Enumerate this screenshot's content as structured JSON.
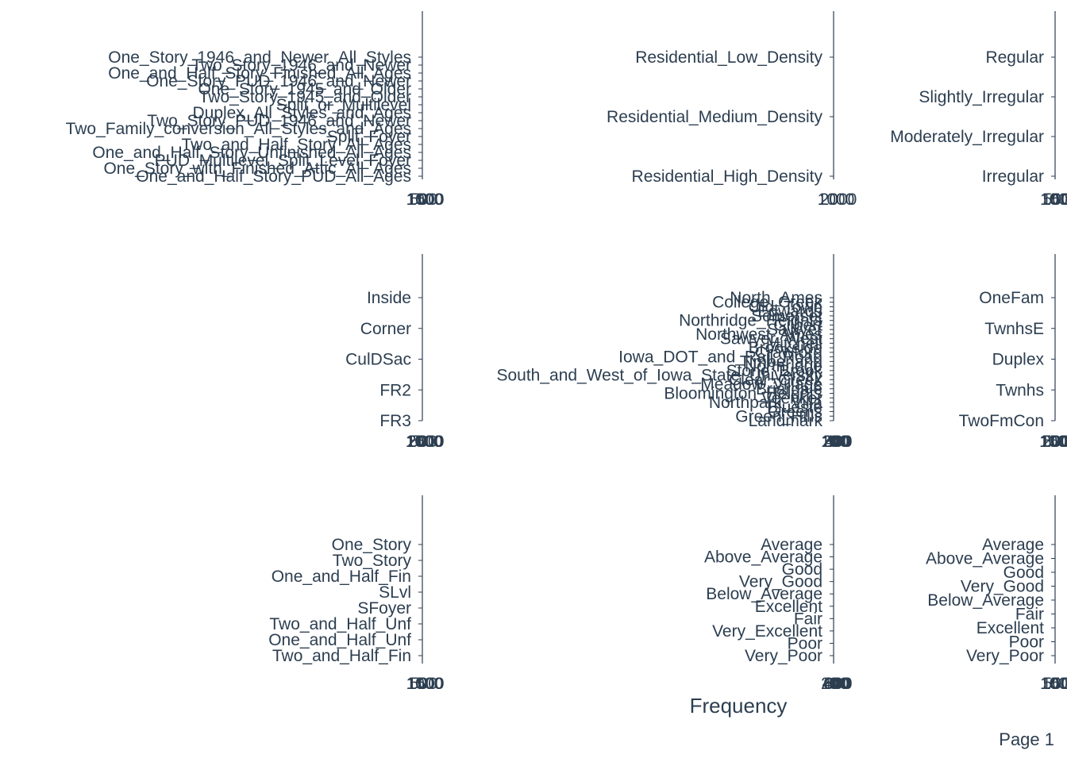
{
  "page_label": "Page 1",
  "x_axis_title": "Frequency",
  "colors": {
    "text": "#2c3e50",
    "axis": "#2c3e50",
    "background": "#ffffff"
  },
  "chart_data": [
    {
      "type": "bar",
      "orientation": "horizontal",
      "categories": [
        "One_Story_1946_and_Newer_All_Styles",
        "Two_Story_1946_and_Newer",
        "One_and_Half_Story_Finished_All_Ages",
        "One_Story_PUD_1946_and_Newer",
        "One_Story_1945_and_Older",
        "Two_Story_1945_and_Older",
        "Split_or_Multilevel",
        "Duplex_All_Styles_and_Ages",
        "Two_Story_PUD_1946_and_Newer",
        "Two_Family_conversion_All_Styles_and_Ages",
        "Split_Foyer",
        "Two_and_Half_Story_All_Ages",
        "One_and_Half_Story_Unfinished_All_Ages",
        "PUD_Multilevel_Split_Level_Foyer",
        "One_Story_with_Finished_Attic_All_Ages",
        "One_and_Half_Story_PUD_All_Ages"
      ],
      "values": [
        0,
        0,
        0,
        0,
        0,
        0,
        0,
        0,
        0,
        0,
        0,
        0,
        0,
        0,
        0,
        0
      ],
      "x_tick_labels": [
        "0",
        "500",
        "1000",
        "1500"
      ]
    },
    {
      "type": "bar",
      "orientation": "horizontal",
      "categories": [
        "Residential_Low_Density",
        "Residential_Medium_Density",
        "Residential_High_Density"
      ],
      "values": [
        0,
        0,
        0
      ],
      "x_tick_labels": [
        "0",
        "1000",
        "2000"
      ]
    },
    {
      "type": "bar",
      "orientation": "horizontal",
      "categories": [
        "Regular",
        "Slightly_Irregular",
        "Moderately_Irregular",
        "Irregular"
      ],
      "values": [
        0,
        0,
        0,
        0
      ],
      "x_tick_labels": [
        "0",
        "500",
        "1000",
        "1500"
      ]
    },
    {
      "type": "bar",
      "orientation": "horizontal",
      "categories": [
        "Inside",
        "Corner",
        "CulDSac",
        "FR2",
        "FR3"
      ],
      "values": [
        0,
        0,
        0,
        0,
        0
      ],
      "x_tick_labels": [
        "0",
        "500",
        "1000",
        "1500",
        "2000"
      ]
    },
    {
      "type": "bar",
      "orientation": "horizontal",
      "categories": [
        "North_Ames",
        "College_Creek",
        "Old_Town",
        "Edwards",
        "Somerset",
        "Northridge_Heights",
        "Gilbert",
        "Sawyer",
        "Northwest_Ames",
        "Sawyer_West",
        "Mitchell",
        "Brookside",
        "Crawford",
        "Iowa_DOT_and_Rail_Road",
        "Timberland",
        "Northridge",
        "Stone_Brook",
        "South_and_West_of_Iowa_State_University",
        "Clear_Creek",
        "Meadow_Village",
        "Briardale",
        "Bloomington_Heights",
        "Veenker",
        "Northpark_Villa",
        "Blueste",
        "Greens",
        "Green_Hills",
        "Landmark"
      ],
      "values": [
        0,
        0,
        0,
        0,
        0,
        0,
        0,
        0,
        0,
        0,
        0,
        0,
        0,
        0,
        0,
        0,
        0,
        0,
        0,
        0,
        0,
        0,
        0,
        0,
        0,
        0,
        0,
        0
      ],
      "x_tick_labels": [
        "0",
        "100",
        "200",
        "300",
        "400"
      ]
    },
    {
      "type": "bar",
      "orientation": "horizontal",
      "categories": [
        "OneFam",
        "TwnhsE",
        "Duplex",
        "Twnhs",
        "TwoFmCon"
      ],
      "values": [
        0,
        0,
        0,
        0,
        0
      ],
      "x_tick_labels": [
        "0",
        "500",
        "1000",
        "1500",
        "2000"
      ]
    },
    {
      "type": "bar",
      "orientation": "horizontal",
      "categories": [
        "One_Story",
        "Two_Story",
        "One_and_Half_Fin",
        "SLvl",
        "SFoyer",
        "Two_and_Half_Unf",
        "One_and_Half_Unf",
        "Two_and_Half_Fin"
      ],
      "values": [
        0,
        0,
        0,
        0,
        0,
        0,
        0,
        0
      ],
      "x_tick_labels": [
        "0",
        "500",
        "1000",
        "1500"
      ]
    },
    {
      "type": "bar",
      "orientation": "horizontal",
      "categories": [
        "Average",
        "Above_Average",
        "Good",
        "Very_Good",
        "Below_Average",
        "Excellent",
        "Fair",
        "Very_Excellent",
        "Poor",
        "Very_Poor"
      ],
      "values": [
        0,
        0,
        0,
        0,
        0,
        0,
        0,
        0,
        0,
        0
      ],
      "x_tick_labels": [
        "0",
        "200",
        "400",
        "600",
        "800"
      ]
    },
    {
      "type": "bar",
      "orientation": "horizontal",
      "categories": [
        "Average",
        "Above_Average",
        "Good",
        "Very_Good",
        "Below_Average",
        "Fair",
        "Excellent",
        "Poor",
        "Very_Poor"
      ],
      "values": [
        0,
        0,
        0,
        0,
        0,
        0,
        0,
        0,
        0
      ],
      "x_tick_labels": [
        "0",
        "500",
        "1000",
        "1500"
      ]
    }
  ]
}
